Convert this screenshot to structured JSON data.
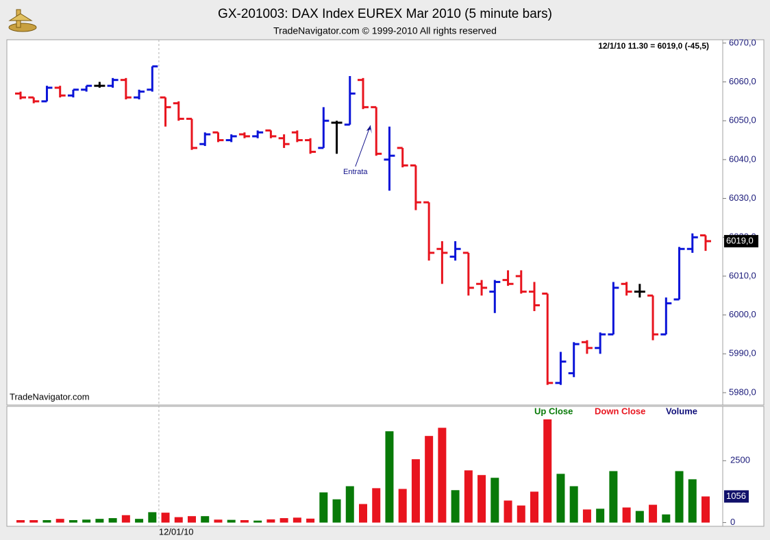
{
  "title": "GX-201003:  DAX Index EUREX Mar 2010  (5 minute bars)",
  "subtitle": "TradeNavigator.com © 1999-2010 All rights reserved",
  "chart_data": [
    {
      "type": "ohlc",
      "info": "12/1/10 11.30 = 6019,0 (-45,5)",
      "watermark": "TradeNavigator.com",
      "annotation": "Entrata",
      "up_color": "#0a14d8",
      "down_color": "#e8141e",
      "flat_color": "#000000",
      "open": [
        6057,
        6056,
        6055,
        6058.5,
        6056.5,
        6058,
        6059,
        6059,
        6060.5,
        6056,
        6058,
        6056,
        6054.5,
        6050.5,
        6044,
        6047,
        6045,
        6046.5,
        6046,
        6047.5,
        6045.5,
        6047,
        6045,
        6043,
        6049.5,
        6049,
        6060.5,
        6053.5,
        6040,
        6043,
        6038.5,
        6029,
        6017,
        6015,
        6016,
        6008,
        6006,
        6009,
        6010,
        6006,
        6005.5,
        5982.5,
        5985,
        5993,
        5991.5,
        5995,
        6008,
        6006,
        6005,
        5995,
        6004,
        6017,
        6020.5
      ],
      "high": [
        6057.5,
        6056,
        6059,
        6059,
        6058,
        6059,
        6060,
        6061,
        6061,
        6058,
        6064,
        6056,
        6055,
        6050.5,
        6047,
        6047,
        6046.5,
        6047,
        6047.5,
        6047.5,
        6046.5,
        6047.5,
        6045.5,
        6053.5,
        6050,
        6061.5,
        6061,
        6053.5,
        6048.5,
        6043,
        6038.5,
        6029,
        6019,
        6019,
        6016,
        6009,
        6009,
        6011.5,
        6011.5,
        6008.5,
        6005.5,
        5990.5,
        5993,
        5993.5,
        5995.5,
        6008.5,
        6008.5,
        6008,
        6005,
        6004.5,
        6017.5,
        6021,
        6020.5
      ],
      "low": [
        6055.5,
        6054.5,
        6055,
        6056,
        6056,
        6057.5,
        6058.5,
        6058.5,
        6055.5,
        6055.5,
        6057.5,
        6048.5,
        6050,
        6042.5,
        6043.5,
        6044.5,
        6044.5,
        6045.5,
        6045.5,
        6045.5,
        6043,
        6044.5,
        6041.5,
        6043,
        6041.5,
        6049,
        6053,
        6041,
        6032,
        6038,
        6027,
        6014,
        6008,
        6014,
        6005,
        6005,
        6000.5,
        6007.5,
        6005.5,
        6001,
        5982,
        5982,
        5984,
        5990,
        5990,
        5995,
        6005,
        6004.5,
        5993.5,
        5995,
        6004,
        6016,
        6016.5
      ],
      "close": [
        6056,
        6055,
        6058.5,
        6056.5,
        6058,
        6059,
        6059,
        6060.5,
        6056,
        6057.5,
        6064,
        6053.5,
        6050.5,
        6043,
        6046.5,
        6045,
        6046,
        6046,
        6047,
        6046,
        6044,
        6045,
        6042,
        6050,
        6049.5,
        6057,
        6053.5,
        6041.5,
        6041,
        6038.5,
        6029,
        6016,
        6016,
        6017,
        6007,
        6007,
        6008.5,
        6008,
        6006,
        6002.5,
        5982.5,
        5988,
        5992.5,
        5991.5,
        5995,
        6007,
        6006,
        6006,
        5995,
        6003,
        6017,
        6020,
        6019
      ],
      "last_price": {
        "value": 6019,
        "label": "6019,0"
      },
      "ylim": [
        5977,
        6070.5
      ],
      "yticks": [
        {
          "value": 5980,
          "label": "5980,0"
        },
        {
          "value": 5990,
          "label": "5990,0"
        },
        {
          "value": 6000,
          "label": "6000,0"
        },
        {
          "value": 6010,
          "label": "6010,0"
        },
        {
          "value": 6020,
          "label": "6020,0"
        },
        {
          "value": 6030,
          "label": "6030,0"
        },
        {
          "value": 6040,
          "label": "6040,0"
        },
        {
          "value": 6050,
          "label": "6050,0"
        },
        {
          "value": 6060,
          "label": "6060,0"
        },
        {
          "value": 6070,
          "label": "6070,0"
        }
      ],
      "grid": false
    },
    {
      "type": "volume",
      "legend": [
        {
          "name": "Up Close",
          "color": "#087a08"
        },
        {
          "name": "Down Close",
          "color": "#e8141e"
        },
        {
          "name": "Volume",
          "color": "#10107a"
        }
      ],
      "categories": [
        null,
        null,
        null,
        null,
        null,
        null,
        null,
        null,
        null,
        null,
        null,
        "12/01/10",
        null,
        null,
        null,
        null,
        null,
        null,
        null,
        null,
        null,
        null,
        null,
        null,
        null,
        null,
        null,
        null,
        null,
        null,
        null,
        null,
        null,
        null,
        null,
        null,
        null,
        null,
        null,
        null,
        null,
        null,
        null,
        null,
        null,
        null,
        null,
        null,
        null,
        null,
        null,
        null,
        null
      ],
      "values": [
        100,
        100,
        100,
        150,
        100,
        120,
        150,
        180,
        300,
        150,
        420,
        400,
        220,
        260,
        260,
        120,
        110,
        100,
        80,
        130,
        180,
        200,
        160,
        1220,
        940,
        1470,
        750,
        1390,
        3690,
        1360,
        2560,
        3500,
        3830,
        1310,
        2110,
        1920,
        1810,
        890,
        690,
        1250,
        4170,
        1970,
        1470,
        530,
        560,
        2080,
        610,
        470,
        720,
        330,
        2080,
        1750,
        1056
      ],
      "last_volume": 1056,
      "ylim": [
        -150,
        4640
      ],
      "yticks": [
        0,
        2500
      ],
      "grid": false
    }
  ]
}
